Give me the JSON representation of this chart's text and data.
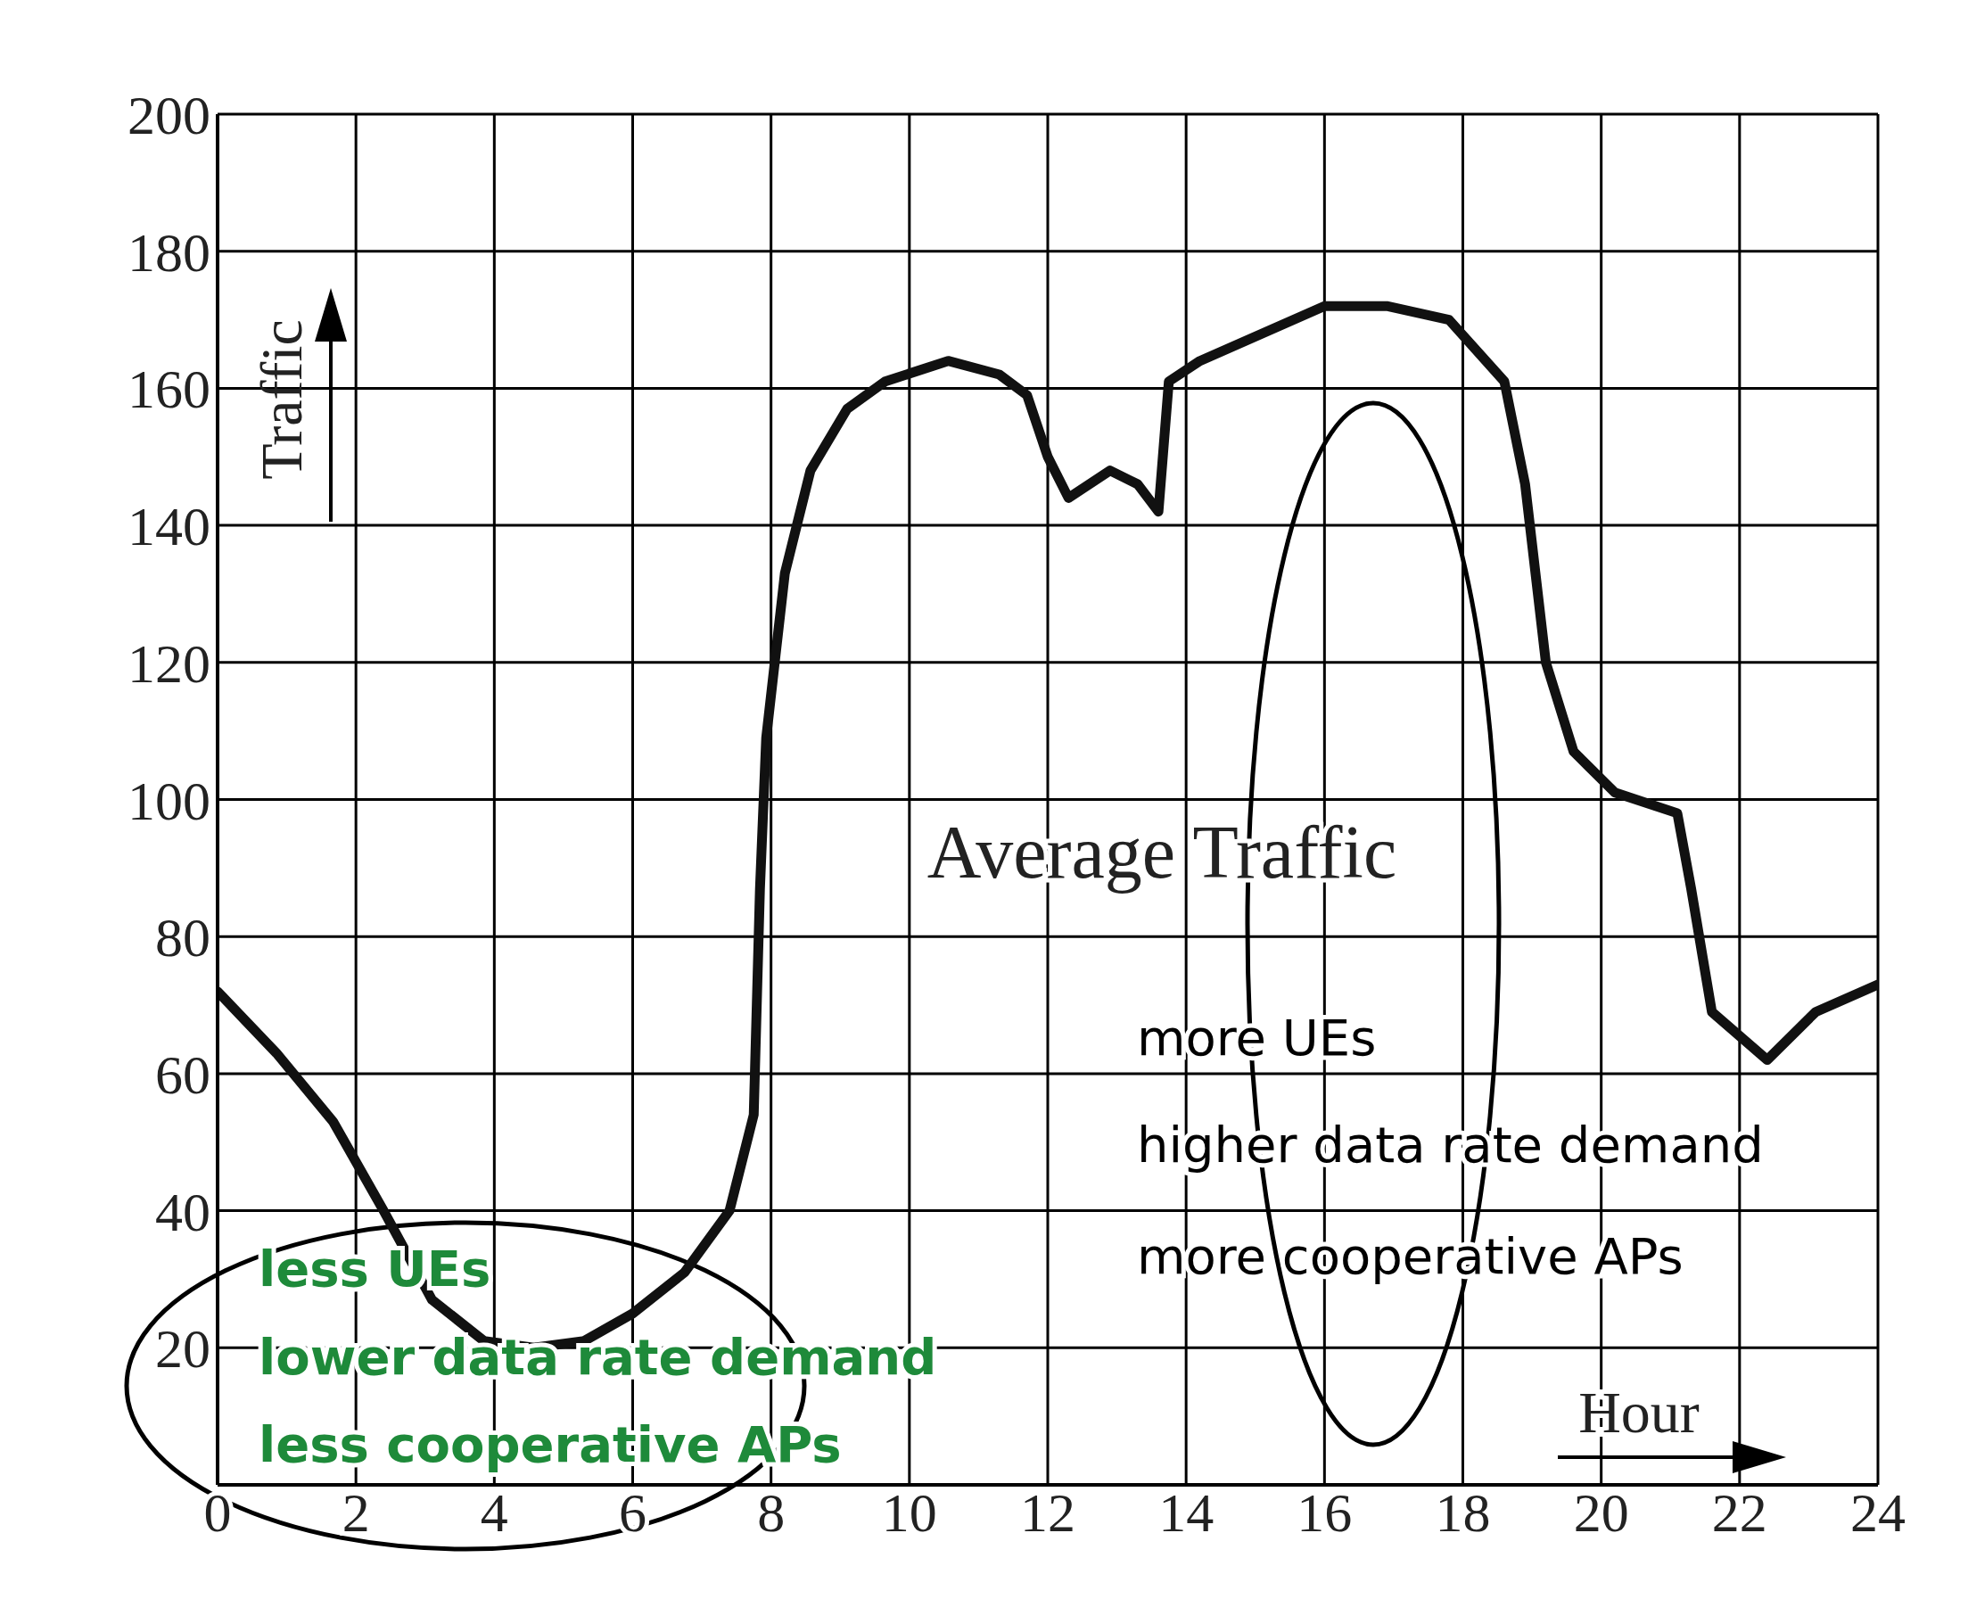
{
  "chart_data": {
    "type": "line",
    "xlabel": "Hour",
    "ylabel": "Traffic",
    "x": [
      0,
      0.85,
      1.67,
      2.4,
      3.1,
      3.85,
      4.57,
      5.3,
      6.0,
      6.75,
      7.4,
      7.75,
      7.84,
      7.93,
      8.2,
      8.57,
      9.1,
      9.65,
      10.56,
      11.3,
      11.7,
      12.0,
      12.3,
      12.9,
      13.3,
      13.6,
      13.75,
      14.2,
      15.1,
      16.0,
      16.9,
      17.8,
      18.6,
      18.9,
      19.2,
      19.6,
      20.2,
      21.1,
      21.3,
      21.6,
      22.4,
      23.1,
      24
    ],
    "series": [
      {
        "color": "#111111",
        "values": [
          72,
          63,
          53,
          40,
          27,
          21,
          20,
          21,
          25,
          31,
          40,
          54,
          87,
          109,
          133,
          148,
          157,
          161,
          164,
          162,
          159,
          150,
          144,
          148,
          146,
          142,
          161,
          164,
          168,
          172,
          172,
          170,
          161,
          146,
          120,
          107,
          101,
          98,
          87,
          69,
          62,
          69,
          73
        ]
      }
    ],
    "xlim": [
      0,
      24
    ],
    "xticks": [
      0,
      2,
      4,
      6,
      8,
      10,
      12,
      14,
      16,
      18,
      20,
      22,
      24
    ],
    "ylim": [
      0,
      200
    ],
    "yticks": [
      {
        "value": 0,
        "label": null
      },
      20,
      40,
      60,
      80,
      100,
      120,
      140,
      160,
      180,
      200
    ],
    "grid": true,
    "marker": "none",
    "line_style": "solid",
    "annotations": [
      "Average Traffic",
      "less UEs",
      "lower data rate demand",
      "less cooperative APs",
      "more UEs",
      "higher data rate demand",
      "more cooperative APs"
    ]
  }
}
